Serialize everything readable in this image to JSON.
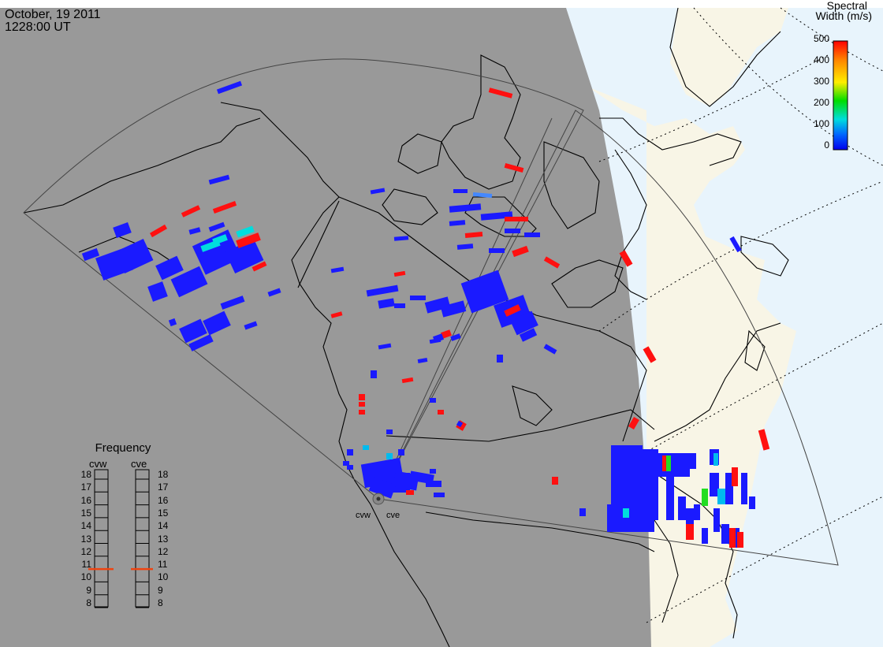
{
  "header": {
    "date": "October, 19 2011",
    "time": "1228:00 UT"
  },
  "colorbar": {
    "title_line1": "Spectral",
    "title_line2": "Width (m/s)",
    "ticks": [
      "500",
      "400",
      "300",
      "200",
      "100",
      "0"
    ],
    "gradient": [
      "#ff0000",
      "#ff8800",
      "#ffee00",
      "#00dd00",
      "#00dddd",
      "#0066ff",
      "#0000ee"
    ]
  },
  "frequency_panel": {
    "title": "Frequency",
    "radars": [
      "cvw",
      "cve"
    ],
    "scale": [
      "18",
      "17",
      "16",
      "15",
      "14",
      "13",
      "12",
      "11",
      "10",
      "9",
      "8"
    ],
    "cvw_freq_mhz": 10.5,
    "cve_freq_mhz": 10.5,
    "indicator_color": "#ee4411"
  },
  "sites": {
    "cvw_label": "cvw",
    "cve_label": "cve"
  },
  "colors": {
    "night": "#999999",
    "day_land": "#f8f5e6",
    "day_ocean": "#e8f4fc",
    "coast": "#000000",
    "low_width": "#1a1aff",
    "high_width": "#ff1010"
  }
}
